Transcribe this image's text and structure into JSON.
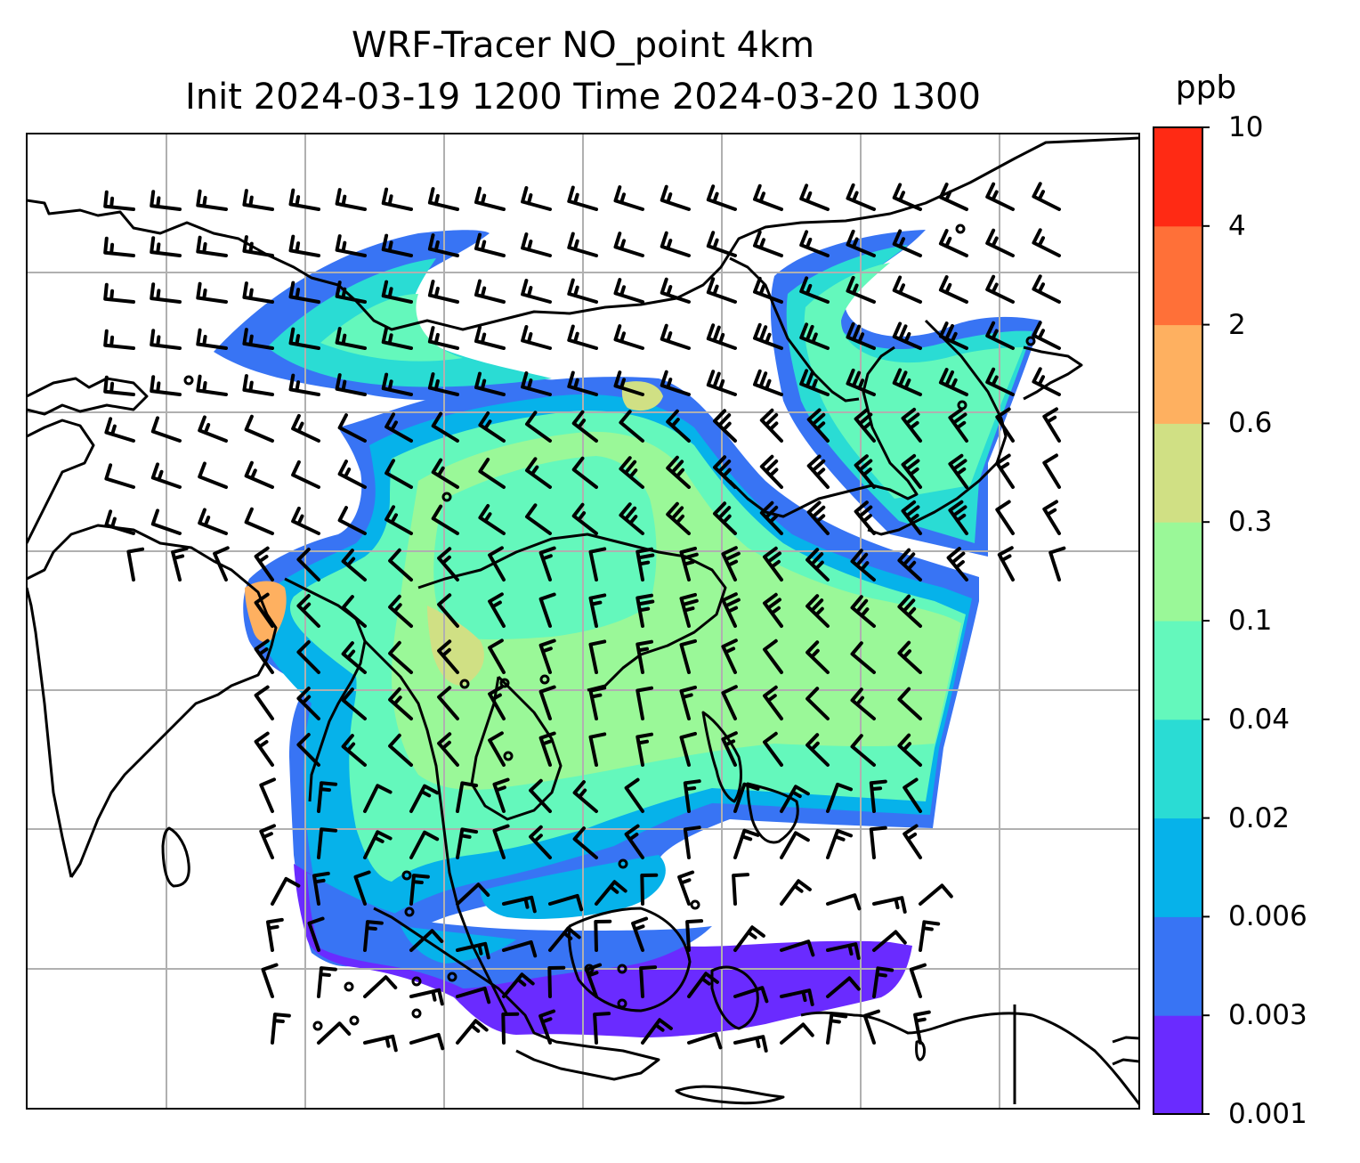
{
  "title": {
    "line1": "WRF-Tracer NO_point 4km",
    "line2": "Init 2024-03-19 1200 Time 2024-03-20 1300"
  },
  "colorbar": {
    "unit": "ppb",
    "levels": [
      "0.001",
      "0.003",
      "0.006",
      "0.02",
      "0.04",
      "0.1",
      "0.3",
      "0.6",
      "2",
      "4",
      "10"
    ],
    "colors": [
      "#6a2bff",
      "#3874f4",
      "#06b2ea",
      "#2adcd4",
      "#64f8bc",
      "#9af898",
      "#d0e084",
      "#feb060",
      "#ff7038",
      "#ff2a14"
    ]
  },
  "map": {
    "content": "filled contour of tracer concentration with wind barbs over Southeast Asia",
    "gridline_color": "#b0b0b0",
    "coastline_color": "#000000"
  }
}
